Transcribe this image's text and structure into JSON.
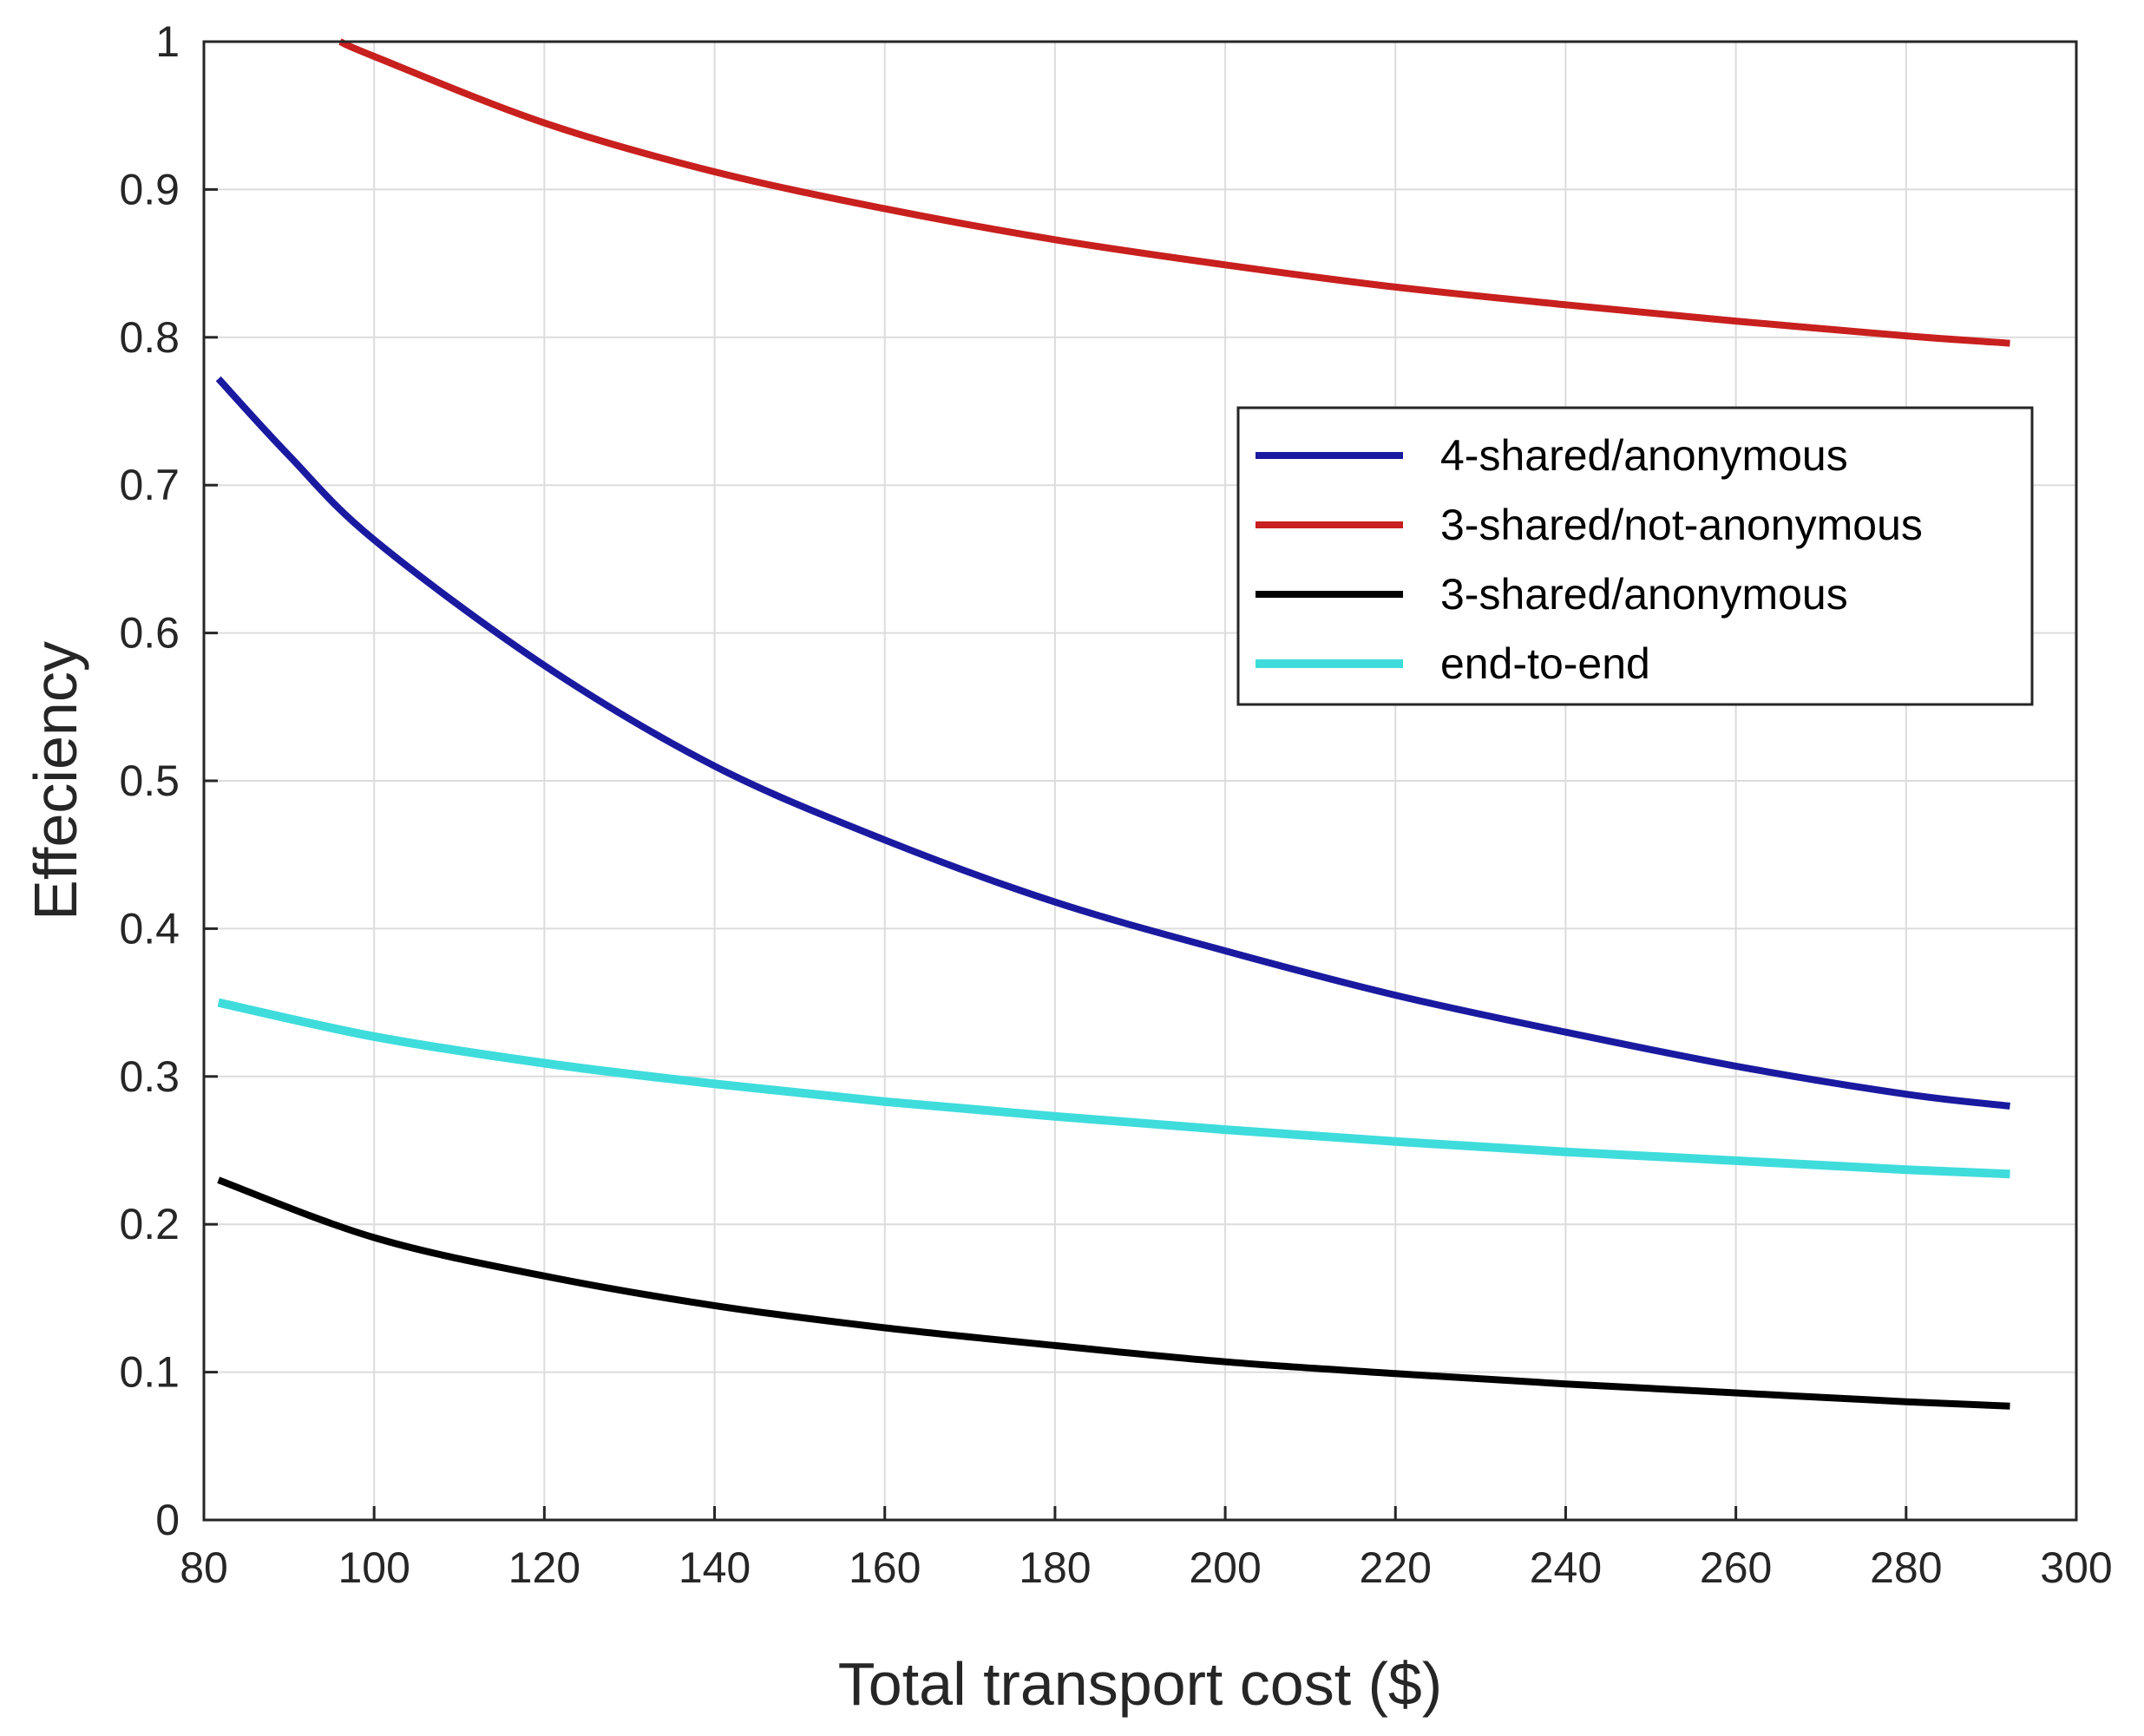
{
  "chart_data": {
    "type": "line",
    "title": "",
    "xlabel": "Total transport cost ($)",
    "ylabel": "Effeciency",
    "xlim": [
      80,
      300
    ],
    "ylim": [
      0,
      1
    ],
    "grid": true,
    "legend_position": "right",
    "x_ticks": [
      80,
      100,
      120,
      140,
      160,
      180,
      200,
      220,
      240,
      260,
      280,
      300
    ],
    "x_tick_labels": [
      "80",
      "100",
      "120",
      "140",
      "160",
      "180",
      "200",
      "220",
      "240",
      "260",
      "280",
      "300"
    ],
    "y_ticks": [
      0,
      0.1,
      0.2,
      0.3,
      0.4,
      0.5,
      0.6,
      0.7,
      0.8,
      0.9,
      1
    ],
    "y_tick_labels": [
      "0",
      "0.1",
      "0.2",
      "0.3",
      "0.4",
      "0.5",
      "0.6",
      "0.7",
      "0.8",
      "0.9",
      "1"
    ],
    "series": [
      {
        "name": "4-shared/anonymous",
        "color": "#1a1aa0",
        "x": [
          81.7,
          90,
          100,
          120,
          140,
          160,
          180,
          200,
          220,
          240,
          260,
          280,
          292.2
        ],
        "y": [
          0.772,
          0.72,
          0.663,
          0.578,
          0.51,
          0.46,
          0.418,
          0.385,
          0.355,
          0.33,
          0.307,
          0.288,
          0.28
        ]
      },
      {
        "name": "3-shared/not-anonymous",
        "color": "#c8201e",
        "x": [
          96,
          100,
          120,
          140,
          160,
          180,
          200,
          220,
          240,
          260,
          280,
          292.2
        ],
        "y": [
          1.0,
          0.99,
          0.945,
          0.912,
          0.887,
          0.866,
          0.849,
          0.834,
          0.822,
          0.811,
          0.801,
          0.796
        ]
      },
      {
        "name": "3-shared/anonymous",
        "color": "#000000",
        "x": [
          81.7,
          100,
          120,
          140,
          160,
          180,
          200,
          220,
          240,
          260,
          280,
          292.2
        ],
        "y": [
          0.23,
          0.191,
          0.165,
          0.145,
          0.13,
          0.118,
          0.107,
          0.099,
          0.092,
          0.086,
          0.08,
          0.077
        ]
      },
      {
        "name": "end-to-end",
        "color": "#3fdcdc",
        "x": [
          81.7,
          100,
          120,
          140,
          160,
          180,
          200,
          220,
          240,
          260,
          280,
          292.2
        ],
        "y": [
          0.35,
          0.327,
          0.309,
          0.295,
          0.283,
          0.273,
          0.264,
          0.256,
          0.249,
          0.243,
          0.237,
          0.234
        ]
      }
    ]
  }
}
